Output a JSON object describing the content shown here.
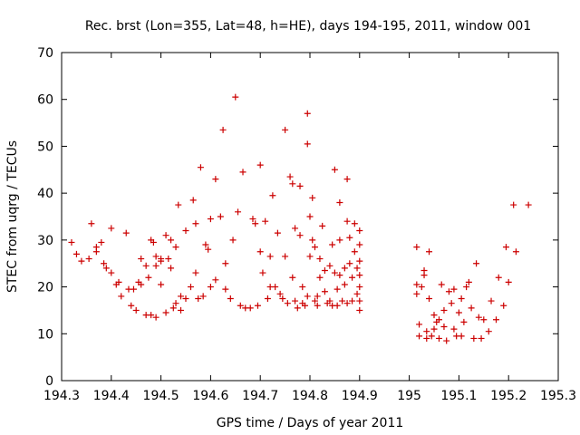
{
  "chart_data": {
    "type": "scatter",
    "title": "Rec. brst (Lon=355, Lat=48, h=HE), days 194-195, 2011, window 001",
    "xlabel": "GPS time / Days of year 2011",
    "ylabel": "STEC from uqrg / TECUs",
    "xlim": [
      194.3,
      195.3
    ],
    "ylim": [
      0,
      70
    ],
    "x_ticks": [
      "194.3",
      "194.4",
      "194.5",
      "194.6",
      "194.7",
      "194.8",
      "194.9",
      "195",
      "195.1",
      "195.2",
      "195.3"
    ],
    "y_ticks": [
      "0",
      "10",
      "20",
      "30",
      "40",
      "50",
      "60",
      "70"
    ],
    "grid": false,
    "legend": "none",
    "marker": "plus",
    "color": "#cc0000",
    "points": [
      [
        194.32,
        29.5
      ],
      [
        194.33,
        27
      ],
      [
        194.34,
        25.5
      ],
      [
        194.355,
        26
      ],
      [
        194.36,
        33.5
      ],
      [
        194.37,
        28.5
      ],
      [
        194.37,
        27.5
      ],
      [
        194.38,
        29.5
      ],
      [
        194.385,
        25
      ],
      [
        194.39,
        24
      ],
      [
        194.4,
        32.5
      ],
      [
        194.4,
        23
      ],
      [
        194.41,
        20.5
      ],
      [
        194.415,
        21
      ],
      [
        194.42,
        18
      ],
      [
        194.43,
        31.5
      ],
      [
        194.435,
        19.5
      ],
      [
        194.44,
        16
      ],
      [
        194.445,
        19.5
      ],
      [
        194.45,
        15
      ],
      [
        194.455,
        21
      ],
      [
        194.46,
        26
      ],
      [
        194.46,
        20.5
      ],
      [
        194.47,
        24.5
      ],
      [
        194.475,
        22
      ],
      [
        194.48,
        14
      ],
      [
        194.485,
        29.5
      ],
      [
        194.49,
        24.5
      ],
      [
        194.49,
        13.5
      ],
      [
        194.5,
        25.5
      ],
      [
        194.5,
        20.5
      ],
      [
        194.51,
        14.5
      ],
      [
        194.52,
        30
      ],
      [
        194.52,
        24
      ],
      [
        194.53,
        16.5
      ],
      [
        194.54,
        15
      ],
      [
        194.47,
        14
      ],
      [
        194.48,
        30
      ],
      [
        194.49,
        26.5
      ],
      [
        194.5,
        26
      ],
      [
        194.51,
        31
      ],
      [
        194.515,
        26
      ],
      [
        194.525,
        15.5
      ],
      [
        194.53,
        28.5
      ],
      [
        194.535,
        37.5
      ],
      [
        194.54,
        18
      ],
      [
        194.55,
        32
      ],
      [
        194.55,
        17.5
      ],
      [
        194.56,
        20
      ],
      [
        194.565,
        38.5
      ],
      [
        194.57,
        33.5
      ],
      [
        194.57,
        23
      ],
      [
        194.575,
        17.5
      ],
      [
        194.58,
        45.5
      ],
      [
        194.585,
        18
      ],
      [
        194.59,
        29
      ],
      [
        194.595,
        28
      ],
      [
        194.6,
        34.5
      ],
      [
        194.6,
        20
      ],
      [
        194.61,
        21.5
      ],
      [
        194.61,
        43
      ],
      [
        194.62,
        35
      ],
      [
        194.625,
        53.5
      ],
      [
        194.63,
        25
      ],
      [
        194.63,
        19.5
      ],
      [
        194.64,
        17.5
      ],
      [
        194.645,
        30
      ],
      [
        194.65,
        60.5
      ],
      [
        194.655,
        36
      ],
      [
        194.66,
        16
      ],
      [
        194.665,
        44.5
      ],
      [
        194.67,
        15.5
      ],
      [
        194.68,
        15.5
      ],
      [
        194.685,
        34.5
      ],
      [
        194.69,
        33.5
      ],
      [
        194.695,
        16
      ],
      [
        194.7,
        46
      ],
      [
        194.7,
        27.5
      ],
      [
        194.705,
        23
      ],
      [
        194.71,
        34
      ],
      [
        194.715,
        17.5
      ],
      [
        194.72,
        20
      ],
      [
        194.72,
        26.5
      ],
      [
        194.725,
        39.5
      ],
      [
        194.73,
        20
      ],
      [
        194.735,
        31.5
      ],
      [
        194.74,
        18.5
      ],
      [
        194.745,
        17.5
      ],
      [
        194.75,
        53.5
      ],
      [
        194.75,
        26.5
      ],
      [
        194.755,
        16.5
      ],
      [
        194.76,
        43.5
      ],
      [
        194.765,
        42
      ],
      [
        194.765,
        22
      ],
      [
        194.77,
        32.5
      ],
      [
        194.77,
        17
      ],
      [
        194.775,
        15.5
      ],
      [
        194.78,
        41.5
      ],
      [
        194.78,
        31
      ],
      [
        194.785,
        20
      ],
      [
        194.785,
        16.5
      ],
      [
        194.79,
        16
      ],
      [
        194.795,
        57
      ],
      [
        194.795,
        50.5
      ],
      [
        194.795,
        18
      ],
      [
        194.8,
        35
      ],
      [
        194.8,
        26.5
      ],
      [
        194.805,
        39
      ],
      [
        194.805,
        30
      ],
      [
        194.81,
        28.5
      ],
      [
        194.81,
        17
      ],
      [
        194.815,
        16
      ],
      [
        194.815,
        18
      ],
      [
        194.82,
        26
      ],
      [
        194.82,
        22
      ],
      [
        194.825,
        33
      ],
      [
        194.83,
        23.5
      ],
      [
        194.83,
        19
      ],
      [
        194.835,
        16.5
      ],
      [
        194.84,
        24.5
      ],
      [
        194.84,
        17
      ],
      [
        194.845,
        29
      ],
      [
        194.845,
        16
      ],
      [
        194.85,
        45
      ],
      [
        194.85,
        23
      ],
      [
        194.855,
        19.5
      ],
      [
        194.855,
        16
      ],
      [
        194.86,
        38
      ],
      [
        194.86,
        30
      ],
      [
        194.86,
        22.5
      ],
      [
        194.865,
        17
      ],
      [
        194.87,
        20.5
      ],
      [
        194.87,
        24
      ],
      [
        194.875,
        43
      ],
      [
        194.875,
        34
      ],
      [
        194.875,
        16.5
      ],
      [
        194.88,
        30.5
      ],
      [
        194.88,
        25
      ],
      [
        194.885,
        22
      ],
      [
        194.885,
        17
      ],
      [
        194.89,
        33.5
      ],
      [
        194.89,
        27.5
      ],
      [
        194.895,
        24
      ],
      [
        194.895,
        18.5
      ],
      [
        194.9,
        32
      ],
      [
        194.9,
        29
      ],
      [
        194.9,
        25.5
      ],
      [
        194.9,
        22.5
      ],
      [
        194.9,
        20
      ],
      [
        194.9,
        17
      ],
      [
        194.9,
        15
      ],
      [
        195.015,
        28.5
      ],
      [
        195.015,
        20.5
      ],
      [
        195.015,
        18.5
      ],
      [
        195.02,
        12
      ],
      [
        195.02,
        9.5
      ],
      [
        195.025,
        20
      ],
      [
        195.03,
        23.5
      ],
      [
        195.03,
        22.5
      ],
      [
        195.035,
        9
      ],
      [
        195.035,
        10.5
      ],
      [
        195.04,
        27.5
      ],
      [
        195.04,
        17.5
      ],
      [
        195.045,
        9.5
      ],
      [
        195.05,
        14
      ],
      [
        195.05,
        11
      ],
      [
        195.055,
        12.5
      ],
      [
        195.06,
        9
      ],
      [
        195.06,
        13
      ],
      [
        195.065,
        20.5
      ],
      [
        195.07,
        15
      ],
      [
        195.07,
        11.5
      ],
      [
        195.075,
        8.5
      ],
      [
        195.08,
        19
      ],
      [
        195.085,
        16.5
      ],
      [
        195.09,
        19.5
      ],
      [
        195.09,
        11
      ],
      [
        195.095,
        9.5
      ],
      [
        195.1,
        14.5
      ],
      [
        195.105,
        17.5
      ],
      [
        195.105,
        9.5
      ],
      [
        195.11,
        12.5
      ],
      [
        195.115,
        20
      ],
      [
        195.12,
        21
      ],
      [
        195.125,
        15.5
      ],
      [
        195.13,
        9
      ],
      [
        195.135,
        25
      ],
      [
        195.14,
        13.5
      ],
      [
        195.145,
        9
      ],
      [
        195.15,
        13
      ],
      [
        195.16,
        10.5
      ],
      [
        195.165,
        17
      ],
      [
        195.175,
        13
      ],
      [
        195.18,
        22
      ],
      [
        195.19,
        16
      ],
      [
        195.195,
        28.5
      ],
      [
        195.2,
        21
      ],
      [
        195.21,
        37.5
      ],
      [
        195.215,
        27.5
      ],
      [
        195.24,
        37.5
      ]
    ]
  }
}
